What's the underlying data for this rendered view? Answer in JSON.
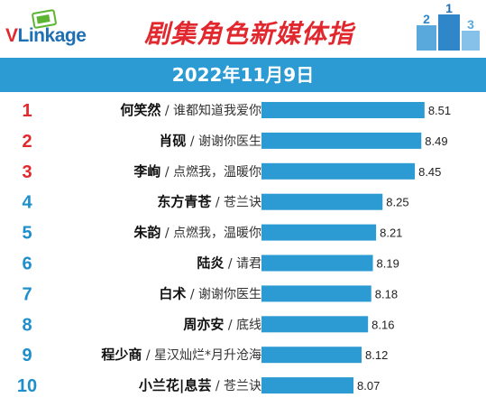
{
  "header": {
    "logo_text_v": "V",
    "logo_text_rest": "Link",
    "logo_text_age": "age",
    "title": "剧集角色新媒体指",
    "date": "2022年11月9日"
  },
  "colors": {
    "brand_red": "#e0282e",
    "brand_blue": "#1e6fb4",
    "banner": "#2c9bd3",
    "bar": "#2c9bd3",
    "rank_top3": "#e0282e",
    "rank_rest": "#1e8fcb"
  },
  "chart_data": {
    "type": "bar",
    "orientation": "horizontal",
    "title": "剧集角色新媒体指",
    "subtitle": "2022年11月9日",
    "xlim": [
      7.5,
      8.55
    ],
    "ranks": [
      "1",
      "2",
      "3",
      "4",
      "5",
      "6",
      "7",
      "8",
      "9",
      "10"
    ],
    "categories": [
      "何笑然",
      "肖砚",
      "李峋",
      "东方青苍",
      "朱韵",
      "陆炎",
      "白术",
      "周亦安",
      "程少商",
      "小兰花|息芸"
    ],
    "dramas": [
      "谁都知道我爱你",
      "谢谢你医生",
      "点燃我，温暖你",
      "苍兰诀",
      "点燃我，温暖你",
      "请君",
      "谢谢你医生",
      "底线",
      "星汉灿烂*月升沧海",
      "苍兰诀"
    ],
    "values": [
      8.51,
      8.49,
      8.45,
      8.25,
      8.21,
      8.19,
      8.18,
      8.16,
      8.12,
      8.07
    ],
    "value_labels": [
      "8.51",
      "8.49",
      "8.45",
      "8.25",
      "8.21",
      "8.19",
      "8.18",
      "8.16",
      "8.12",
      "8.07"
    ]
  }
}
